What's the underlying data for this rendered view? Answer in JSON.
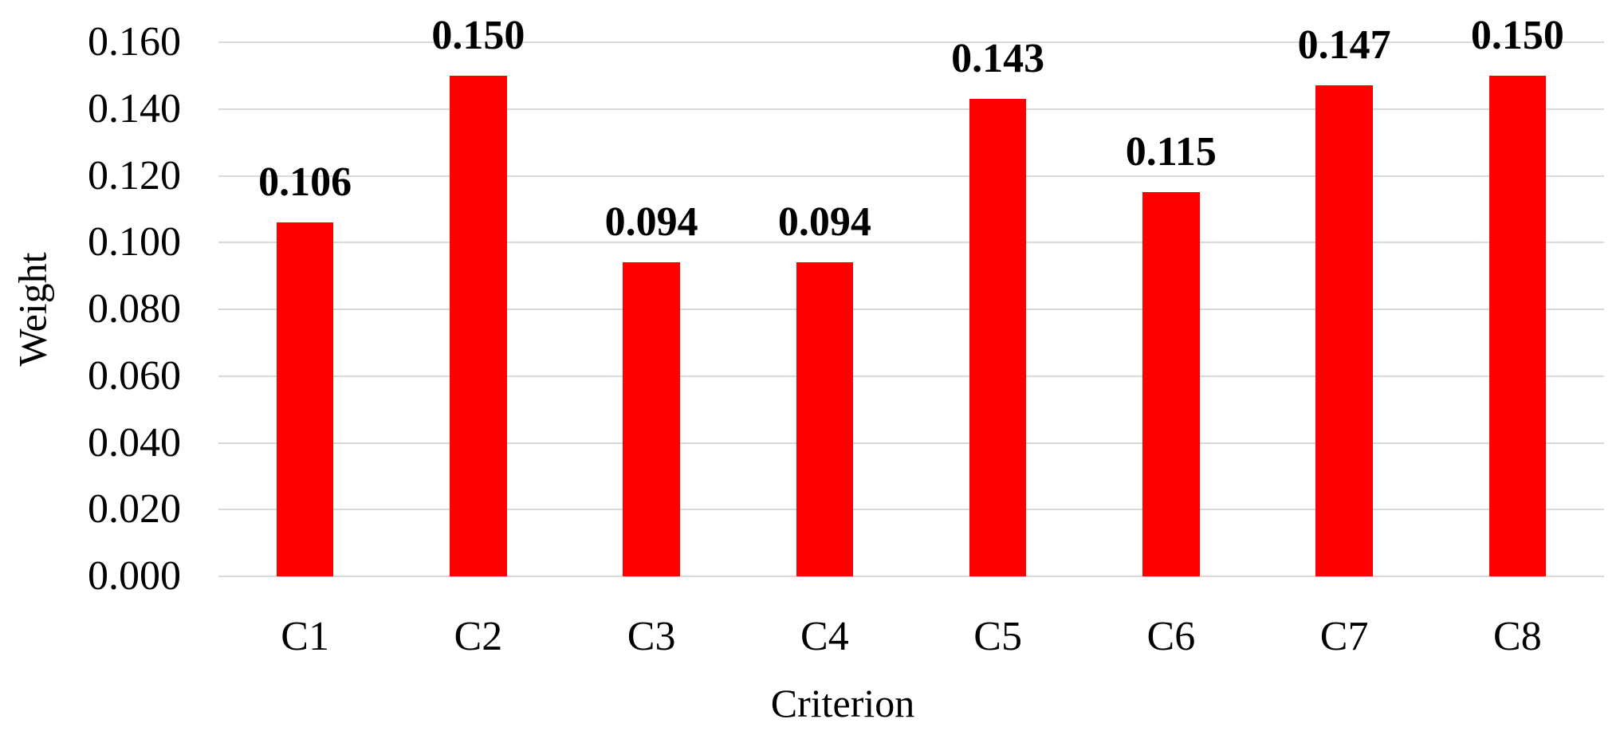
{
  "figure": {
    "background": "#FFFFFF"
  },
  "chart_data": {
    "type": "bar",
    "categories": [
      "C1",
      "C2",
      "C3",
      "C4",
      "C5",
      "C6",
      "C7",
      "C8"
    ],
    "values": [
      0.106,
      0.15,
      0.094,
      0.094,
      0.143,
      0.115,
      0.147,
      0.15
    ],
    "value_labels": [
      "0.106",
      "0.150",
      "0.094",
      "0.094",
      "0.143",
      "0.115",
      "0.147",
      "0.150"
    ],
    "title": "",
    "xlabel": "Criterion",
    "ylabel": "Weight",
    "ylim": [
      0,
      0.16
    ],
    "ytick_step": 0.02,
    "ytick_labels": [
      "0.000",
      "0.020",
      "0.040",
      "0.060",
      "0.080",
      "0.100",
      "0.120",
      "0.140",
      "0.160"
    ],
    "grid": true,
    "legend_position": "none",
    "bar_color": "#FF0000",
    "gridline_color": "#D9D9D9",
    "text_color": "#000000"
  }
}
